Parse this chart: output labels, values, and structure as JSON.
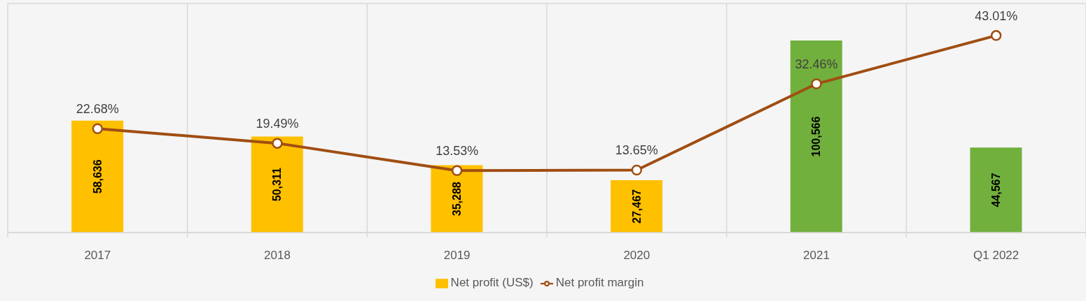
{
  "chart_data": {
    "type": "bar",
    "categories": [
      "2017",
      "2018",
      "2019",
      "2020",
      "2021",
      "Q1 2022"
    ],
    "series": [
      {
        "name": "Net profit (US$)",
        "color": "#ffc000",
        "colors": [
          "#ffc000",
          "#ffc000",
          "#ffc000",
          "#ffc000",
          "#72b03d",
          "#72b03d"
        ],
        "values": [
          58636,
          50311,
          35288,
          27467,
          100566,
          44567
        ],
        "value_labels": [
          "58,636",
          "50,311",
          "35,288",
          "27,467",
          "100,566",
          "44,567"
        ]
      },
      {
        "name": "Net profit margin",
        "type": "line",
        "axis": "y2",
        "color": "#a04e12",
        "values": [
          22.68,
          19.49,
          13.53,
          13.65,
          32.46,
          43.01
        ],
        "value_labels": [
          "22.68%",
          "19.49%",
          "13.53%",
          "13.65%",
          "32.46%",
          "43.01%"
        ]
      }
    ],
    "ylim": [
      0,
      120000
    ],
    "y2lim": [
      0,
      50
    ],
    "grid": true,
    "tick_labels": "x",
    "legend": "bottom",
    "marker": "circle",
    "line_style": "solid"
  }
}
